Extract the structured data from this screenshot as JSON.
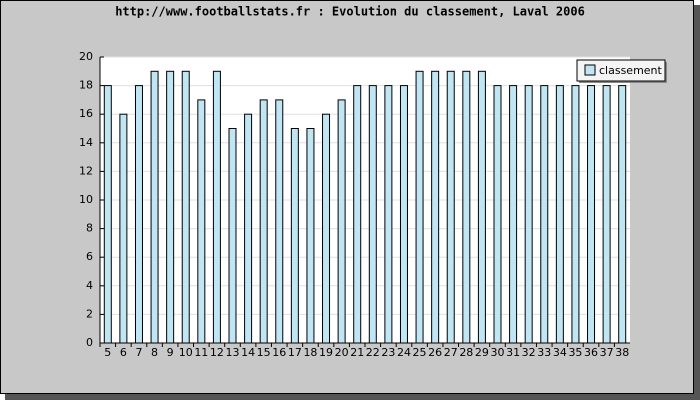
{
  "chart_data": {
    "type": "bar",
    "title": "http://www.footballstats.fr : Evolution du classement, Laval 2006",
    "categories": [
      "5",
      "6",
      "7",
      "8",
      "9",
      "10",
      "11",
      "12",
      "13",
      "14",
      "15",
      "16",
      "17",
      "18",
      "19",
      "20",
      "21",
      "22",
      "23",
      "24",
      "25",
      "26",
      "27",
      "28",
      "29",
      "30",
      "31",
      "32",
      "33",
      "34",
      "35",
      "36",
      "37",
      "38"
    ],
    "series": [
      {
        "name": "classement",
        "color": "#bfe6f2",
        "values": [
          18,
          16,
          18,
          19,
          19,
          19,
          17,
          19,
          15,
          16,
          17,
          17,
          15,
          15,
          16,
          17,
          18,
          18,
          18,
          18,
          19,
          19,
          19,
          19,
          19,
          18,
          18,
          18,
          18,
          18,
          18,
          18,
          18,
          18
        ]
      }
    ],
    "ylim": [
      0,
      20
    ],
    "yticks": [
      0,
      2,
      4,
      6,
      8,
      10,
      12,
      14,
      16,
      18,
      20
    ],
    "grid": true,
    "legend": "top-right"
  }
}
